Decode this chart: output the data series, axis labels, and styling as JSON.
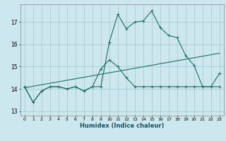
{
  "xlabel": "Humidex (Indice chaleur)",
  "background_color": "#cce8ee",
  "grid_color": "#aaccd4",
  "line_color": "#1a7060",
  "xlim": [
    -0.5,
    23.5
  ],
  "ylim": [
    12.8,
    17.8
  ],
  "yticks": [
    13,
    14,
    15,
    16,
    17
  ],
  "xticks": [
    0,
    1,
    2,
    3,
    4,
    5,
    6,
    7,
    8,
    9,
    10,
    11,
    12,
    13,
    14,
    15,
    16,
    17,
    18,
    19,
    20,
    21,
    22,
    23
  ],
  "line1_x": [
    0,
    1,
    2,
    3,
    4,
    5,
    6,
    7,
    8,
    9,
    10,
    11,
    12,
    13,
    14,
    15,
    16,
    17,
    18,
    19,
    20,
    21,
    22,
    23
  ],
  "line1_y": [
    14.1,
    13.4,
    13.9,
    14.1,
    14.1,
    14.0,
    14.1,
    13.9,
    14.1,
    14.1,
    16.1,
    17.35,
    16.7,
    17.0,
    17.05,
    17.5,
    16.75,
    16.4,
    16.3,
    15.5,
    15.05,
    14.1,
    14.1,
    14.7
  ],
  "line2_x": [
    0,
    1,
    2,
    3,
    4,
    5,
    6,
    7,
    8,
    9,
    10,
    11,
    12,
    13,
    14,
    15,
    16,
    17,
    18,
    19,
    20,
    21,
    22,
    23
  ],
  "line2_y": [
    14.1,
    13.4,
    13.9,
    14.1,
    14.1,
    14.0,
    14.1,
    13.9,
    14.1,
    14.9,
    15.3,
    15.0,
    14.5,
    14.1,
    14.1,
    14.1,
    14.1,
    14.1,
    14.1,
    14.1,
    14.1,
    14.1,
    14.1,
    14.1
  ],
  "line3_x": [
    0,
    23
  ],
  "line3_y": [
    14.05,
    15.6
  ]
}
